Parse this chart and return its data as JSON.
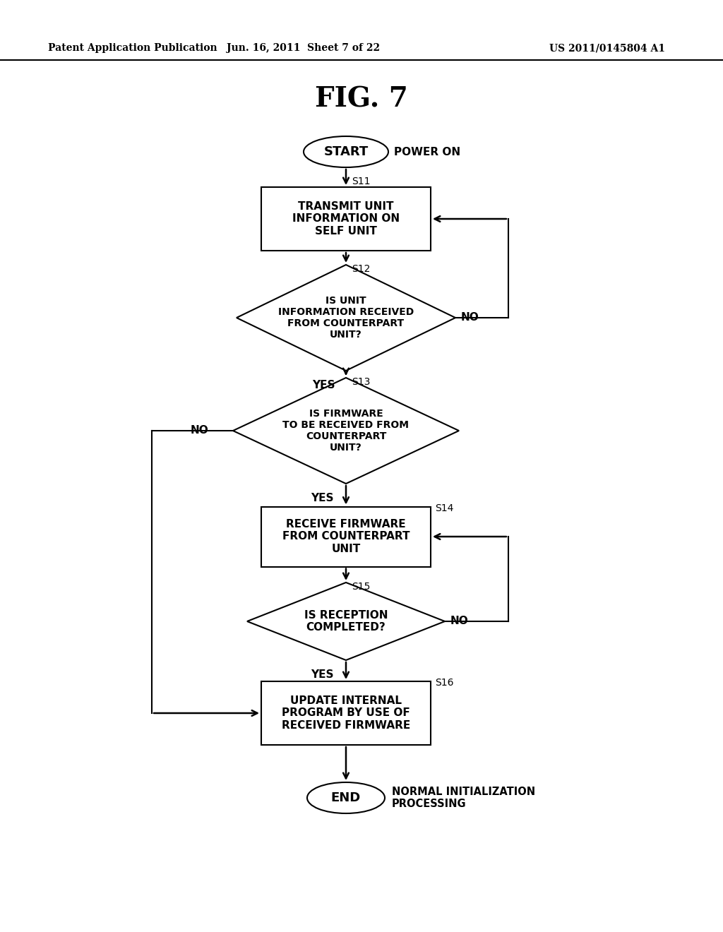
{
  "bg_color": "#ffffff",
  "title": "FIG. 7",
  "header_left": "Patent Application Publication",
  "header_center": "Jun. 16, 2011  Sheet 7 of 22",
  "header_right": "US 2011/0145804 A1",
  "lw": 1.5,
  "arrow_lw": 1.8
}
